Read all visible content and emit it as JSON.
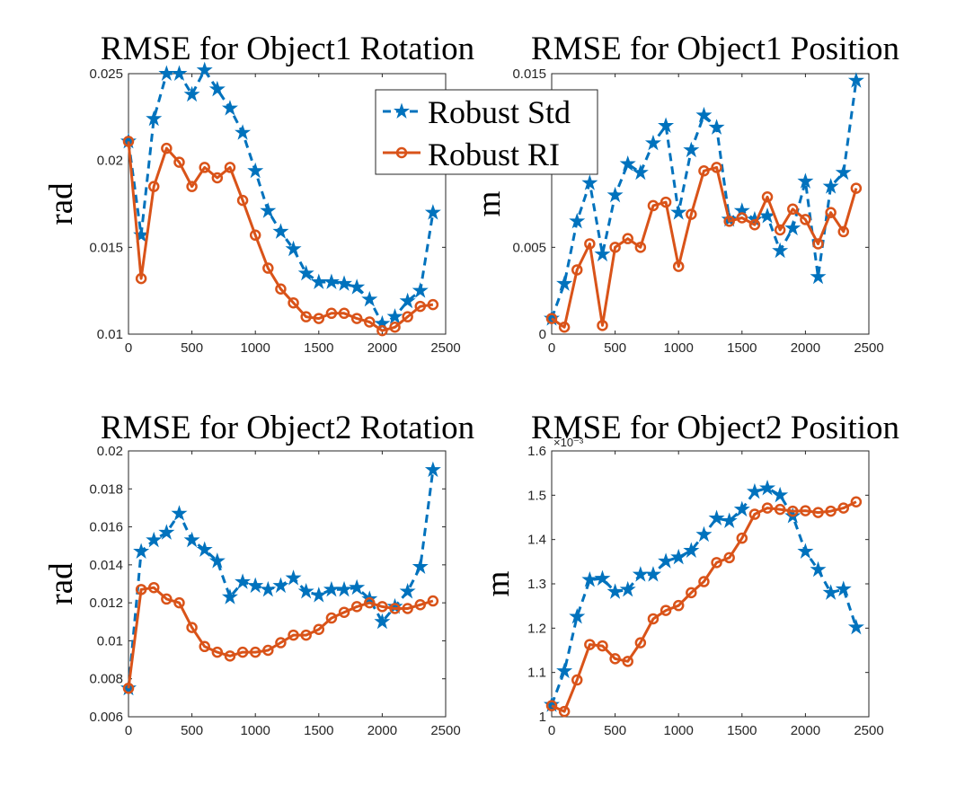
{
  "colors": {
    "std": "#0072BD",
    "ri": "#D95319",
    "axis": "#262626"
  },
  "legend": {
    "std_label": "Robust Std",
    "ri_label": "Robust RI"
  },
  "chart_data": [
    {
      "type": "line",
      "title": "RMSE for Object1 Rotation",
      "xlabel": "",
      "ylabel": "rad",
      "xlim": [
        0,
        2500
      ],
      "ylim": [
        0.01,
        0.025
      ],
      "xticks": [
        0,
        500,
        1000,
        1500,
        2000,
        2500
      ],
      "xtick_labels": [
        "0",
        "500",
        "1000",
        "1500",
        "2000",
        "2500"
      ],
      "yticks": [
        0.01,
        0.015,
        0.02,
        0.025
      ],
      "ytick_labels": [
        "0.01",
        "0.015",
        "0.02",
        "0.025"
      ],
      "x": [
        0,
        100,
        200,
        300,
        400,
        500,
        600,
        700,
        800,
        900,
        1000,
        1100,
        1200,
        1300,
        1400,
        1500,
        1600,
        1700,
        1800,
        1900,
        2000,
        2100,
        2200,
        2300,
        2400
      ],
      "series": [
        {
          "name": "Robust Std",
          "values": [
            0.0211,
            0.0157,
            0.0224,
            0.025,
            0.025,
            0.0238,
            0.0252,
            0.0241,
            0.023,
            0.0216,
            0.0194,
            0.0171,
            0.0159,
            0.0149,
            0.0135,
            0.013,
            0.013,
            0.0129,
            0.0127,
            0.012,
            0.0106,
            0.011,
            0.0119,
            0.0125,
            0.017
          ]
        },
        {
          "name": "Robust RI",
          "values": [
            0.0211,
            0.0132,
            0.0185,
            0.0207,
            0.0199,
            0.0185,
            0.0196,
            0.019,
            0.0196,
            0.0177,
            0.0157,
            0.0138,
            0.0126,
            0.0118,
            0.011,
            0.0109,
            0.0112,
            0.0112,
            0.0109,
            0.0107,
            0.0102,
            0.0104,
            0.011,
            0.0116,
            0.0117
          ]
        }
      ],
      "show_legend": true
    },
    {
      "type": "line",
      "title": "RMSE for Object1 Position",
      "xlabel": "",
      "ylabel": "m",
      "xlim": [
        0,
        2500
      ],
      "ylim": [
        0,
        0.015
      ],
      "xticks": [
        0,
        500,
        1000,
        1500,
        2000,
        2500
      ],
      "xtick_labels": [
        "0",
        "500",
        "1000",
        "1500",
        "2000",
        "2500"
      ],
      "yticks": [
        0,
        0.005,
        0.015
      ],
      "ytick_labels": [
        "0",
        "0.005",
        "0.015"
      ],
      "x": [
        0,
        100,
        200,
        300,
        400,
        500,
        600,
        700,
        800,
        900,
        1000,
        1100,
        1200,
        1300,
        1400,
        1500,
        1600,
        1700,
        1800,
        1900,
        2000,
        2100,
        2200,
        2300,
        2400
      ],
      "series": [
        {
          "name": "Robust Std",
          "values": [
            0.0009,
            0.0029,
            0.0065,
            0.0087,
            0.0046,
            0.008,
            0.0098,
            0.0093,
            0.011,
            0.012,
            0.007,
            0.0106,
            0.0126,
            0.0119,
            0.0066,
            0.0071,
            0.0066,
            0.0068,
            0.0048,
            0.0061,
            0.0088,
            0.0033,
            0.0085,
            0.0093,
            0.0146
          ]
        },
        {
          "name": "Robust RI",
          "values": [
            0.0009,
            0.0004,
            0.0037,
            0.0052,
            0.0005,
            0.005,
            0.0055,
            0.005,
            0.0074,
            0.0076,
            0.0039,
            0.0069,
            0.0094,
            0.0096,
            0.0065,
            0.0067,
            0.0063,
            0.0079,
            0.006,
            0.0072,
            0.0066,
            0.0052,
            0.007,
            0.0059,
            0.0084
          ]
        }
      ],
      "show_legend": false
    },
    {
      "type": "line",
      "title": "RMSE for Object2 Rotation",
      "xlabel": "",
      "ylabel": "rad",
      "xlim": [
        0,
        2500
      ],
      "ylim": [
        0.006,
        0.02
      ],
      "xticks": [
        0,
        500,
        1000,
        1500,
        2000,
        2500
      ],
      "xtick_labels": [
        "0",
        "500",
        "1000",
        "1500",
        "2000",
        "2500"
      ],
      "yticks": [
        0.006,
        0.008,
        0.01,
        0.012,
        0.014,
        0.016,
        0.018,
        0.02
      ],
      "ytick_labels": [
        "0.006",
        "0.008",
        "0.01",
        "0.012",
        "0.014",
        "0.016",
        "0.018",
        "0.02"
      ],
      "x": [
        0,
        100,
        200,
        300,
        400,
        500,
        600,
        700,
        800,
        900,
        1000,
        1100,
        1200,
        1300,
        1400,
        1500,
        1600,
        1700,
        1800,
        1900,
        2000,
        2100,
        2200,
        2300,
        2400
      ],
      "series": [
        {
          "name": "Robust Std",
          "values": [
            0.0075,
            0.0147,
            0.0153,
            0.0157,
            0.0167,
            0.0153,
            0.0148,
            0.0142,
            0.0123,
            0.0131,
            0.0129,
            0.0127,
            0.0129,
            0.0133,
            0.0126,
            0.0124,
            0.0127,
            0.0127,
            0.0128,
            0.0122,
            0.011,
            0.0118,
            0.0126,
            0.0139,
            0.019
          ]
        },
        {
          "name": "Robust RI",
          "values": [
            0.0075,
            0.0127,
            0.0128,
            0.0122,
            0.012,
            0.0107,
            0.0097,
            0.0094,
            0.0092,
            0.0094,
            0.0094,
            0.0095,
            0.0099,
            0.0103,
            0.0103,
            0.0106,
            0.0112,
            0.0115,
            0.0118,
            0.012,
            0.0118,
            0.0117,
            0.0117,
            0.0119,
            0.0121
          ]
        }
      ],
      "show_legend": false
    },
    {
      "type": "line",
      "title": "RMSE for Object2 Position",
      "xlabel": "",
      "ylabel": "m",
      "xlim": [
        0,
        2500
      ],
      "ylim": [
        1.0,
        1.6
      ],
      "y_scale_label": "×10⁻³",
      "xticks": [
        0,
        500,
        1000,
        1500,
        2000,
        2500
      ],
      "xtick_labels": [
        "0",
        "500",
        "1000",
        "1500",
        "2000",
        "2500"
      ],
      "yticks": [
        1.0,
        1.1,
        1.2,
        1.3,
        1.4,
        1.5,
        1.6
      ],
      "ytick_labels": [
        "1",
        "1.1",
        "1.2",
        "1.3",
        "1.4",
        "1.5",
        "1.6"
      ],
      "x": [
        0,
        100,
        200,
        300,
        400,
        500,
        600,
        700,
        800,
        900,
        1000,
        1100,
        1200,
        1300,
        1400,
        1500,
        1600,
        1700,
        1800,
        1900,
        2000,
        2100,
        2200,
        2300,
        2400
      ],
      "series": [
        {
          "name": "Robust Std",
          "values": [
            1.027,
            1.103,
            1.226,
            1.309,
            1.312,
            1.282,
            1.287,
            1.321,
            1.321,
            1.351,
            1.36,
            1.375,
            1.411,
            1.448,
            1.442,
            1.468,
            1.508,
            1.516,
            1.5,
            1.453,
            1.373,
            1.332,
            1.28,
            1.288,
            1.202
          ]
        },
        {
          "name": "Robust RI",
          "values": [
            1.025,
            1.012,
            1.083,
            1.163,
            1.16,
            1.131,
            1.125,
            1.167,
            1.221,
            1.24,
            1.251,
            1.28,
            1.305,
            1.348,
            1.359,
            1.403,
            1.457,
            1.471,
            1.468,
            1.464,
            1.465,
            1.461,
            1.464,
            1.471,
            1.485
          ]
        }
      ],
      "show_legend": false
    }
  ]
}
